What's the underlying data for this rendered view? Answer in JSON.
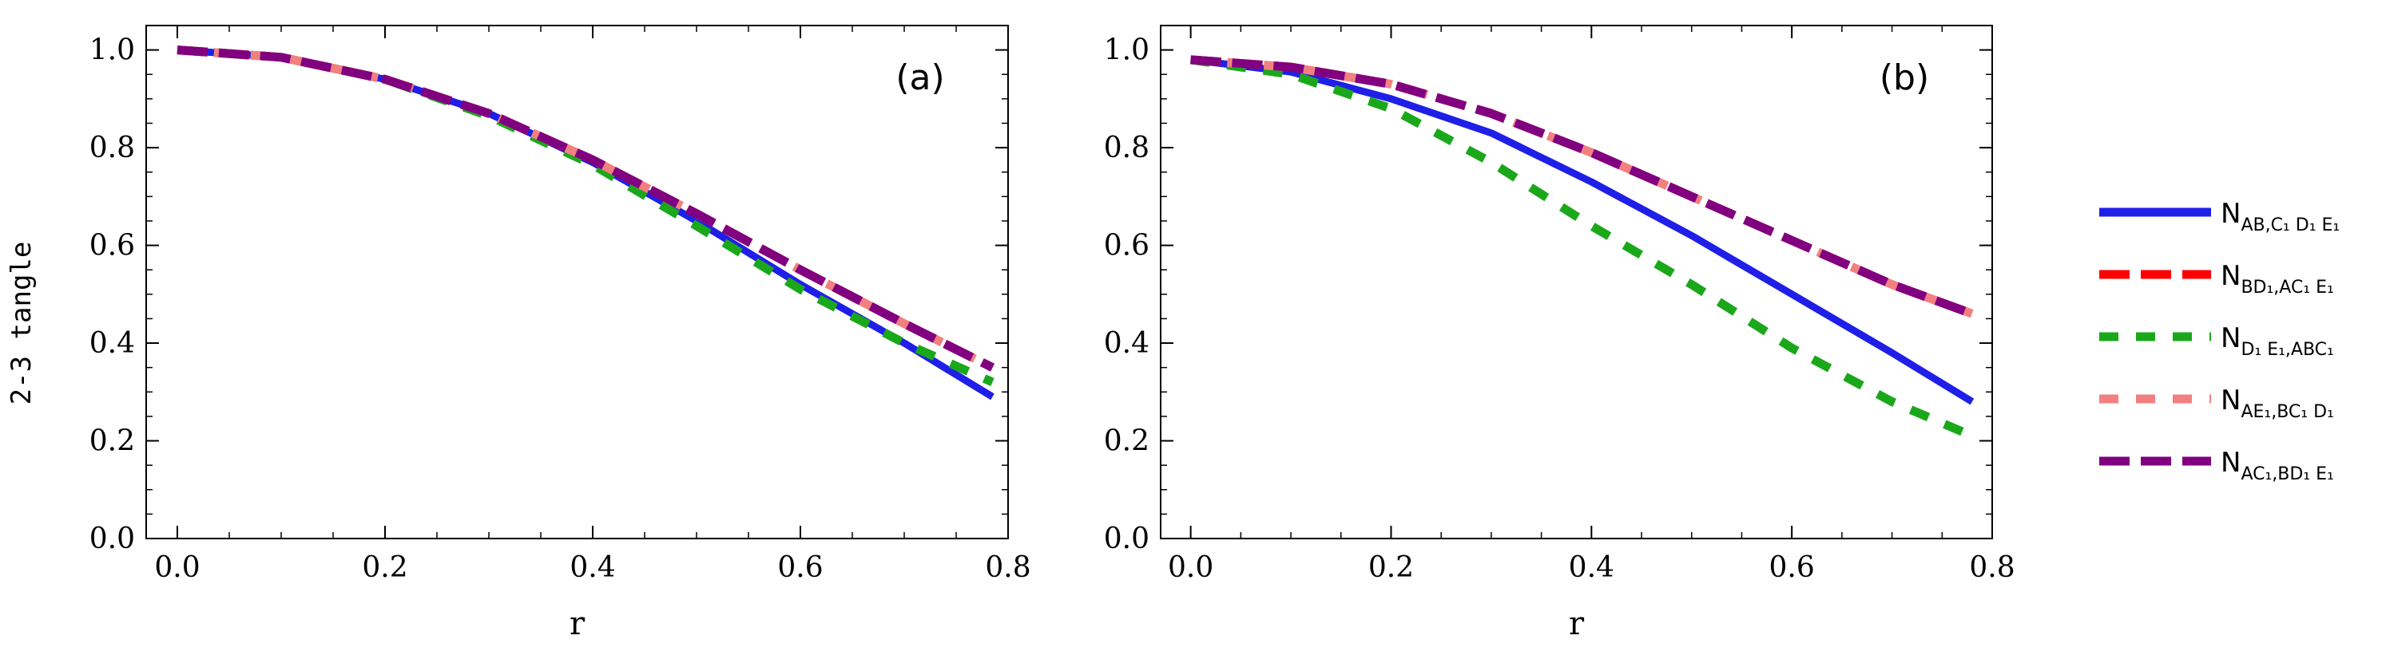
{
  "figure": {
    "ylabel": "2-3 tangle",
    "legend": {
      "placement": "right",
      "entries": [
        {
          "key": "ab",
          "base": "N",
          "sub": "AB,C₁ D₁ E₁",
          "color": "#1f1fe8",
          "style": "solid"
        },
        {
          "key": "bd",
          "base": "N",
          "sub": "BD₁,AC₁ E₁",
          "color": "#ff0000",
          "style": "dashed"
        },
        {
          "key": "de",
          "base": "N",
          "sub": "D₁ E₁,ABC₁",
          "color": "#1aa81a",
          "style": "dashed-wide"
        },
        {
          "key": "ae",
          "base": "N",
          "sub": "AE₁,BC₁ D₁",
          "color": "#f28080",
          "style": "dashed-wide"
        },
        {
          "key": "ac",
          "base": "N",
          "sub": "AC₁,BD₁ E₁",
          "color": "#800080",
          "style": "dashed"
        }
      ]
    }
  },
  "chart_data": [
    {
      "type": "line",
      "panel_label": "(a)",
      "xlabel": "r",
      "ylabel": "2-3 tangle",
      "xlim": [
        -0.03,
        0.8
      ],
      "ylim": [
        0,
        1.05
      ],
      "xticks": [
        "0.0",
        "0.2",
        "0.4",
        "0.6",
        "0.8"
      ],
      "yticks": [
        "0.0",
        "0.2",
        "0.4",
        "0.6",
        "0.8",
        "1.0"
      ],
      "x": [
        0,
        0.1,
        0.2,
        0.3,
        0.4,
        0.5,
        0.6,
        0.7,
        0.785
      ],
      "series": [
        {
          "key": "ab",
          "name": "N_{AB,C1 D1 E1}",
          "values": [
            1.0,
            0.985,
            0.94,
            0.87,
            0.77,
            0.65,
            0.52,
            0.4,
            0.29
          ]
        },
        {
          "key": "bd",
          "name": "N_{BD1,AC1 E1}",
          "values": [
            1.0,
            0.985,
            0.94,
            0.87,
            0.775,
            0.665,
            0.55,
            0.44,
            0.35
          ]
        },
        {
          "key": "de",
          "name": "N_{D1 E1,ABC1}",
          "values": [
            1.0,
            0.985,
            0.94,
            0.865,
            0.765,
            0.64,
            0.51,
            0.4,
            0.32
          ]
        },
        {
          "key": "ae",
          "name": "N_{AE1,BC1 D1}",
          "values": [
            1.0,
            0.985,
            0.94,
            0.87,
            0.775,
            0.665,
            0.55,
            0.44,
            0.35
          ]
        },
        {
          "key": "ac",
          "name": "N_{AC1,BD1 E1}",
          "values": [
            1.0,
            0.985,
            0.94,
            0.87,
            0.775,
            0.665,
            0.55,
            0.44,
            0.35
          ]
        }
      ]
    },
    {
      "type": "line",
      "panel_label": "(b)",
      "xlabel": "r",
      "ylabel": "2-3 tangle",
      "xlim": [
        -0.03,
        0.8
      ],
      "ylim": [
        0,
        1.05
      ],
      "xticks": [
        "0.0",
        "0.2",
        "0.4",
        "0.6",
        "0.8"
      ],
      "yticks": [
        "0.0",
        "0.2",
        "0.4",
        "0.6",
        "0.8",
        "1.0"
      ],
      "x": [
        0,
        0.1,
        0.2,
        0.3,
        0.4,
        0.5,
        0.6,
        0.7,
        0.78
      ],
      "series": [
        {
          "key": "ab",
          "name": "N_{AB,C1 D1 E1}",
          "values": [
            0.98,
            0.955,
            0.9,
            0.83,
            0.73,
            0.62,
            0.5,
            0.38,
            0.28
          ]
        },
        {
          "key": "bd",
          "name": "N_{BD1,AC1 E1}",
          "values": [
            0.98,
            0.965,
            0.93,
            0.87,
            0.79,
            0.7,
            0.61,
            0.52,
            0.46
          ]
        },
        {
          "key": "de",
          "name": "N_{D1 E1,ABC1}",
          "values": [
            0.98,
            0.95,
            0.88,
            0.77,
            0.64,
            0.52,
            0.39,
            0.28,
            0.21
          ]
        },
        {
          "key": "ae",
          "name": "N_{AE1,BC1 D1}",
          "values": [
            0.98,
            0.965,
            0.93,
            0.87,
            0.79,
            0.7,
            0.61,
            0.52,
            0.46
          ]
        },
        {
          "key": "ac",
          "name": "N_{AC1,BD1 E1}",
          "values": [
            0.98,
            0.965,
            0.93,
            0.87,
            0.79,
            0.7,
            0.61,
            0.52,
            0.46
          ]
        }
      ]
    }
  ]
}
